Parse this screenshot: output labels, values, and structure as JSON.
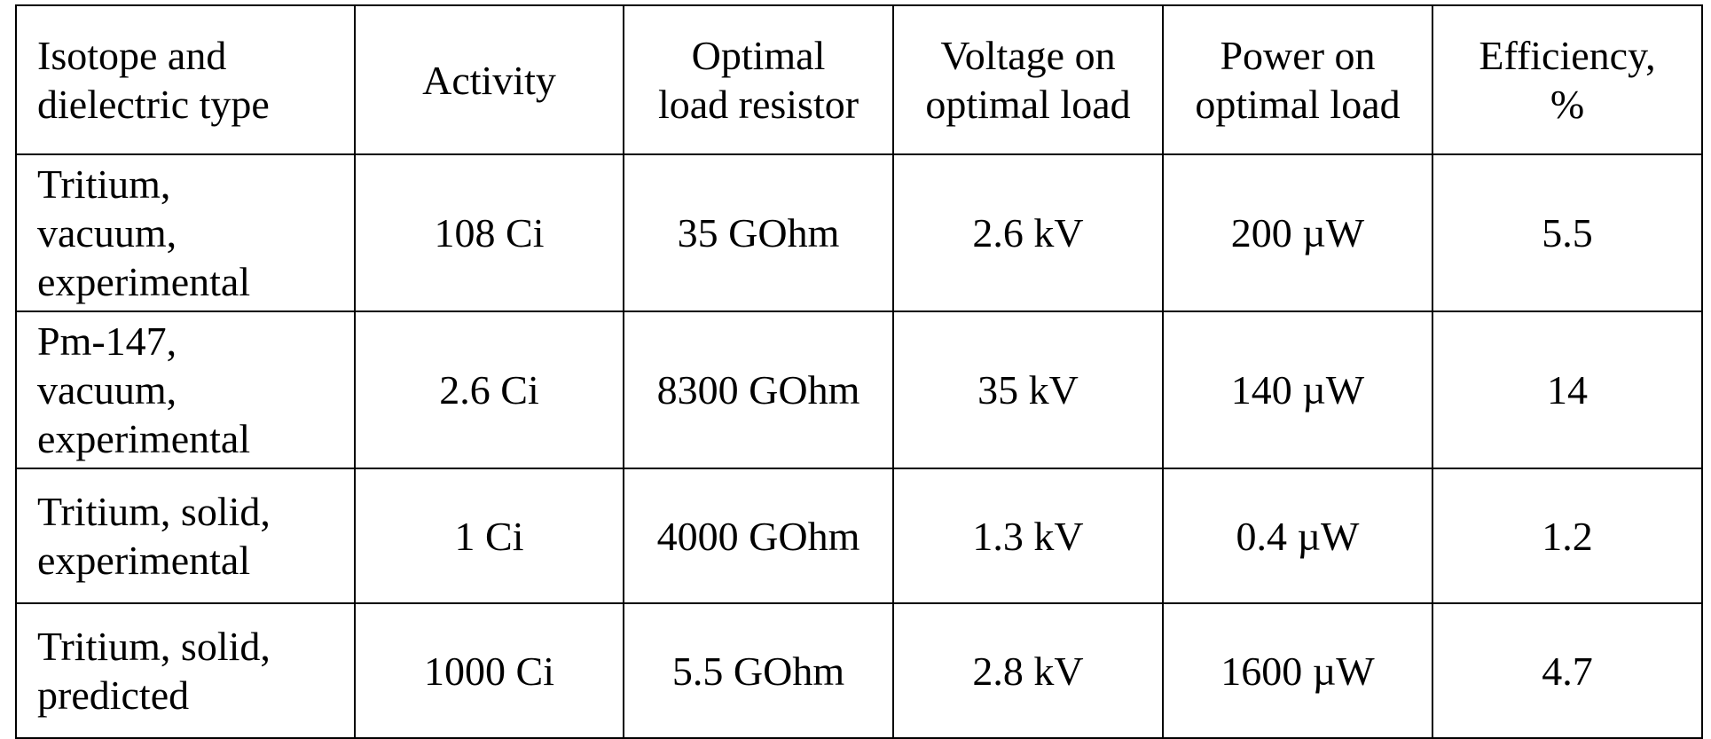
{
  "table": {
    "headers": [
      "Isotope and\ndielectric type",
      "Activity",
      "Optimal\nload resistor",
      "Voltage on\noptimal load",
      "Power on\noptimal load",
      "Efficiency,\n%"
    ],
    "rows": [
      [
        "Tritium,\nvacuum,\nexperimental",
        "108 Ci",
        "35 GOhm",
        "2.6 kV",
        "200 µW",
        "5.5"
      ],
      [
        "Pm-147,\nvacuum,\nexperimental",
        "2.6 Ci",
        "8300 GOhm",
        "35 kV",
        "140 µW",
        "14"
      ],
      [
        "Tritium, solid,\nexperimental",
        "1 Ci",
        "4000 GOhm",
        "1.3 kV",
        "0.4 µW",
        "1.2"
      ],
      [
        "Tritium, solid,\npredicted",
        "1000 Ci",
        "5.5 GOhm",
        "2.8 kV",
        "1600 µW",
        "4.7"
      ]
    ]
  }
}
